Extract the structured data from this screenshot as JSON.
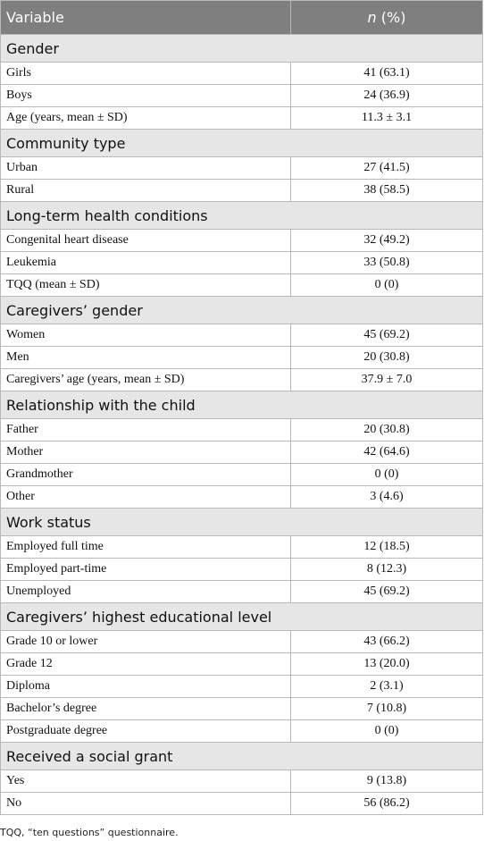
{
  "table": {
    "header": [
      "Variable",
      {
        "italic": "n",
        "text": "(%)"
      }
    ],
    "sections": [
      {
        "title": "Gender",
        "rows": [
          [
            "Girls",
            "41 (63.1)"
          ],
          [
            "Boys",
            "24 (36.9)"
          ],
          [
            "Age (years, mean ± SD)",
            "11.3 ± 3.1"
          ]
        ]
      },
      {
        "title": "Community type",
        "rows": [
          [
            "Urban",
            "27 (41.5)"
          ],
          [
            "Rural",
            "38 (58.5)"
          ]
        ]
      },
      {
        "title": "Long-term health conditions",
        "rows": [
          [
            "Congenital heart disease",
            "32 (49.2)"
          ],
          [
            "Leukemia",
            "33 (50.8)"
          ],
          [
            "TQQ (mean ± SD)",
            "0 (0)"
          ]
        ]
      },
      {
        "title": "Caregivers’ gender",
        "rows": [
          [
            "Women",
            "45 (69.2)"
          ],
          [
            "Men",
            "20 (30.8)"
          ],
          [
            "Caregivers’ age (years, mean ± SD)",
            "37.9 ± 7.0"
          ]
        ]
      },
      {
        "title": "Relationship with the child",
        "rows": [
          [
            "Father",
            "20 (30.8)"
          ],
          [
            "Mother",
            "42 (64.6)"
          ],
          [
            "Grandmother",
            "0 (0)"
          ],
          [
            "Other",
            "3 (4.6)"
          ]
        ]
      },
      {
        "title": "Work status",
        "rows": [
          [
            "Employed full time",
            "12 (18.5)"
          ],
          [
            "Employed part-time",
            "8 (12.3)"
          ],
          [
            "Unemployed",
            "45 (69.2)"
          ]
        ]
      },
      {
        "title": "Caregivers’ highest educational level",
        "rows": [
          [
            "Grade 10 or lower",
            "43 (66.2)"
          ],
          [
            "Grade 12",
            "13 (20.0)"
          ],
          [
            "Diploma",
            "2 (3.1)"
          ],
          [
            "Bachelor’s degree",
            "7 (10.8)"
          ],
          [
            "Postgraduate degree",
            "0 (0)"
          ]
        ]
      },
      {
        "title": "Received a social grant",
        "rows": [
          [
            "Yes",
            "9 (13.8)"
          ],
          [
            "No",
            "56 (86.2)"
          ]
        ]
      }
    ]
  },
  "footnote": "TQQ, “ten questions” questionnaire."
}
